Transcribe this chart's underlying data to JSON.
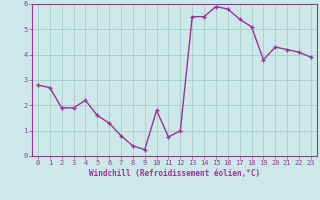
{
  "x": [
    0,
    1,
    2,
    3,
    4,
    5,
    6,
    7,
    8,
    9,
    10,
    11,
    12,
    13,
    14,
    15,
    16,
    17,
    18,
    19,
    20,
    21,
    22,
    23
  ],
  "y": [
    2.8,
    2.7,
    1.9,
    1.9,
    2.2,
    1.6,
    1.3,
    0.8,
    0.4,
    0.25,
    1.8,
    0.75,
    1.0,
    5.5,
    5.5,
    5.9,
    5.8,
    5.4,
    5.1,
    3.8,
    4.3,
    4.2,
    4.1,
    3.9
  ],
  "line_color": "#993399",
  "marker": "+",
  "marker_color": "#993399",
  "bg_color": "#cce8e8",
  "grid_color": "#aacccc",
  "xlabel": "Windchill (Refroidissement éolien,°C)",
  "xlabel_color": "#993399",
  "tick_color": "#993399",
  "spine_color": "#993399",
  "ylim": [
    0,
    6
  ],
  "xlim_min": -0.5,
  "xlim_max": 23.5,
  "yticks": [
    0,
    1,
    2,
    3,
    4,
    5,
    6
  ],
  "xticks": [
    0,
    1,
    2,
    3,
    4,
    5,
    6,
    7,
    8,
    9,
    10,
    11,
    12,
    13,
    14,
    15,
    16,
    17,
    18,
    19,
    20,
    21,
    22,
    23
  ],
  "tick_fontsize": 5,
  "xlabel_fontsize": 5.5,
  "linewidth": 1.0,
  "markersize": 3
}
